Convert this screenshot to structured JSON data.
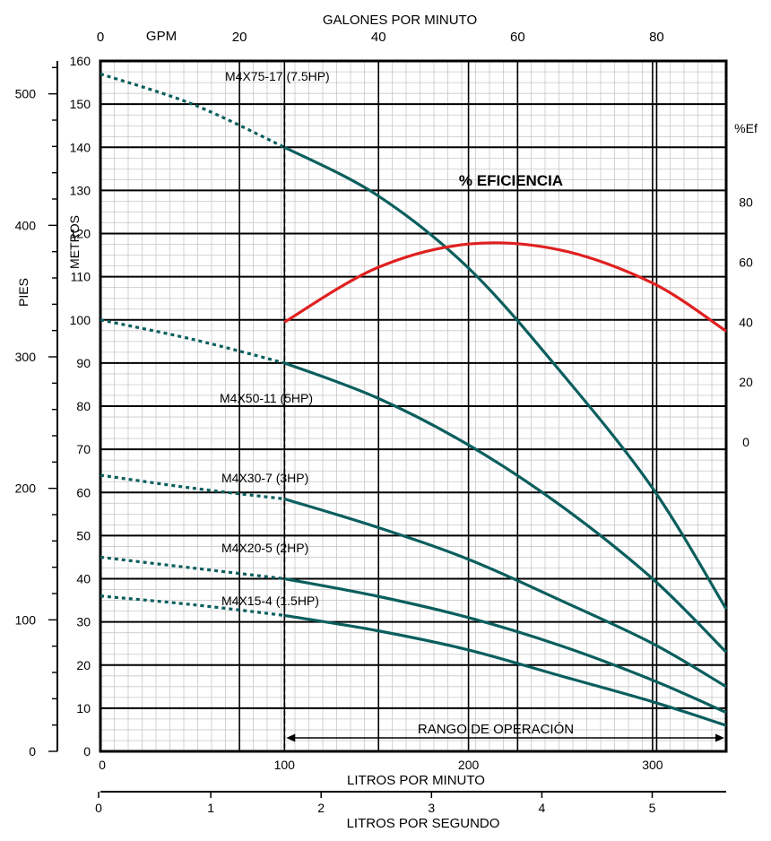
{
  "chart_data": {
    "type": "line",
    "title": "",
    "axes": {
      "bottom": {
        "label": "LITROS POR MINUTO",
        "range": [
          0,
          340
        ],
        "ticks": [
          0,
          100,
          200,
          300
        ]
      },
      "bottom2": {
        "label": "LITROS POR SEGUNDO",
        "range": [
          0,
          5.67
        ],
        "ticks": [
          0,
          1,
          2,
          3,
          4,
          5
        ]
      },
      "top": {
        "label": "GALONES POR MINUTO",
        "unit_label": "GPM",
        "range": [
          0,
          90
        ],
        "ticks": [
          0,
          20,
          40,
          60,
          80
        ]
      },
      "left_inner": {
        "label": "METROS",
        "range": [
          0,
          160
        ],
        "ticks": [
          0,
          10,
          20,
          30,
          40,
          50,
          60,
          70,
          80,
          90,
          100,
          110,
          120,
          130,
          140,
          150,
          160
        ]
      },
      "left_outer": {
        "label": "PIES",
        "range": [
          0,
          525
        ],
        "ticks": [
          0,
          100,
          200,
          300,
          400,
          500
        ]
      },
      "right": {
        "label": "%Ef",
        "range": [
          -103,
          127
        ],
        "ticks": [
          0,
          20,
          40,
          60,
          80
        ]
      }
    },
    "grid": true,
    "operating_range": {
      "label": "RANGO DE OPERACIÓN",
      "x": [
        100,
        340
      ]
    },
    "series": [
      {
        "name": "M4X75-17 (7.5HP)",
        "color": "#0b5e5e",
        "dotted": {
          "x": [
            0,
            50,
            100
          ],
          "y": [
            157,
            150,
            140
          ]
        },
        "solid": {
          "x": [
            100,
            150,
            200,
            250,
            300,
            340
          ],
          "y": [
            140,
            129,
            112,
            88,
            61,
            33
          ]
        }
      },
      {
        "name": "M4X50-11 (5HP)",
        "color": "#0b5e5e",
        "dotted": {
          "x": [
            0,
            50,
            100
          ],
          "y": [
            100,
            95.5,
            90
          ]
        },
        "solid": {
          "x": [
            100,
            150,
            200,
            250,
            300,
            340
          ],
          "y": [
            90,
            82,
            71,
            57,
            40,
            23
          ]
        }
      },
      {
        "name": "M4X30-7 (3HP)",
        "color": "#0b5e5e",
        "dotted": {
          "x": [
            0,
            50,
            100
          ],
          "y": [
            64,
            61,
            58.5
          ]
        },
        "solid": {
          "x": [
            100,
            150,
            200,
            250,
            300,
            340
          ],
          "y": [
            58.5,
            52,
            44.5,
            35,
            25,
            15
          ]
        }
      },
      {
        "name": "M4X20-5 (2HP)",
        "color": "#0b5e5e",
        "dotted": {
          "x": [
            0,
            50,
            100
          ],
          "y": [
            45,
            42.5,
            40
          ]
        },
        "solid": {
          "x": [
            100,
            150,
            200,
            250,
            300,
            340
          ],
          "y": [
            40,
            36,
            31,
            24.5,
            16.5,
            9
          ]
        }
      },
      {
        "name": "M4X15-4 (1.5HP)",
        "color": "#0b5e5e",
        "dotted": {
          "x": [
            0,
            50,
            100
          ],
          "y": [
            36,
            34,
            31.5
          ]
        },
        "solid": {
          "x": [
            100,
            150,
            200,
            250,
            300,
            340
          ],
          "y": [
            31.5,
            28,
            23.5,
            17.5,
            11.5,
            6
          ]
        }
      }
    ],
    "efficiency": {
      "name": "% EFICIENCIA",
      "color": "#e02020",
      "x": [
        100,
        150,
        200,
        250,
        300,
        340
      ],
      "y": [
        40,
        58,
        66,
        64,
        53,
        37
      ]
    }
  }
}
